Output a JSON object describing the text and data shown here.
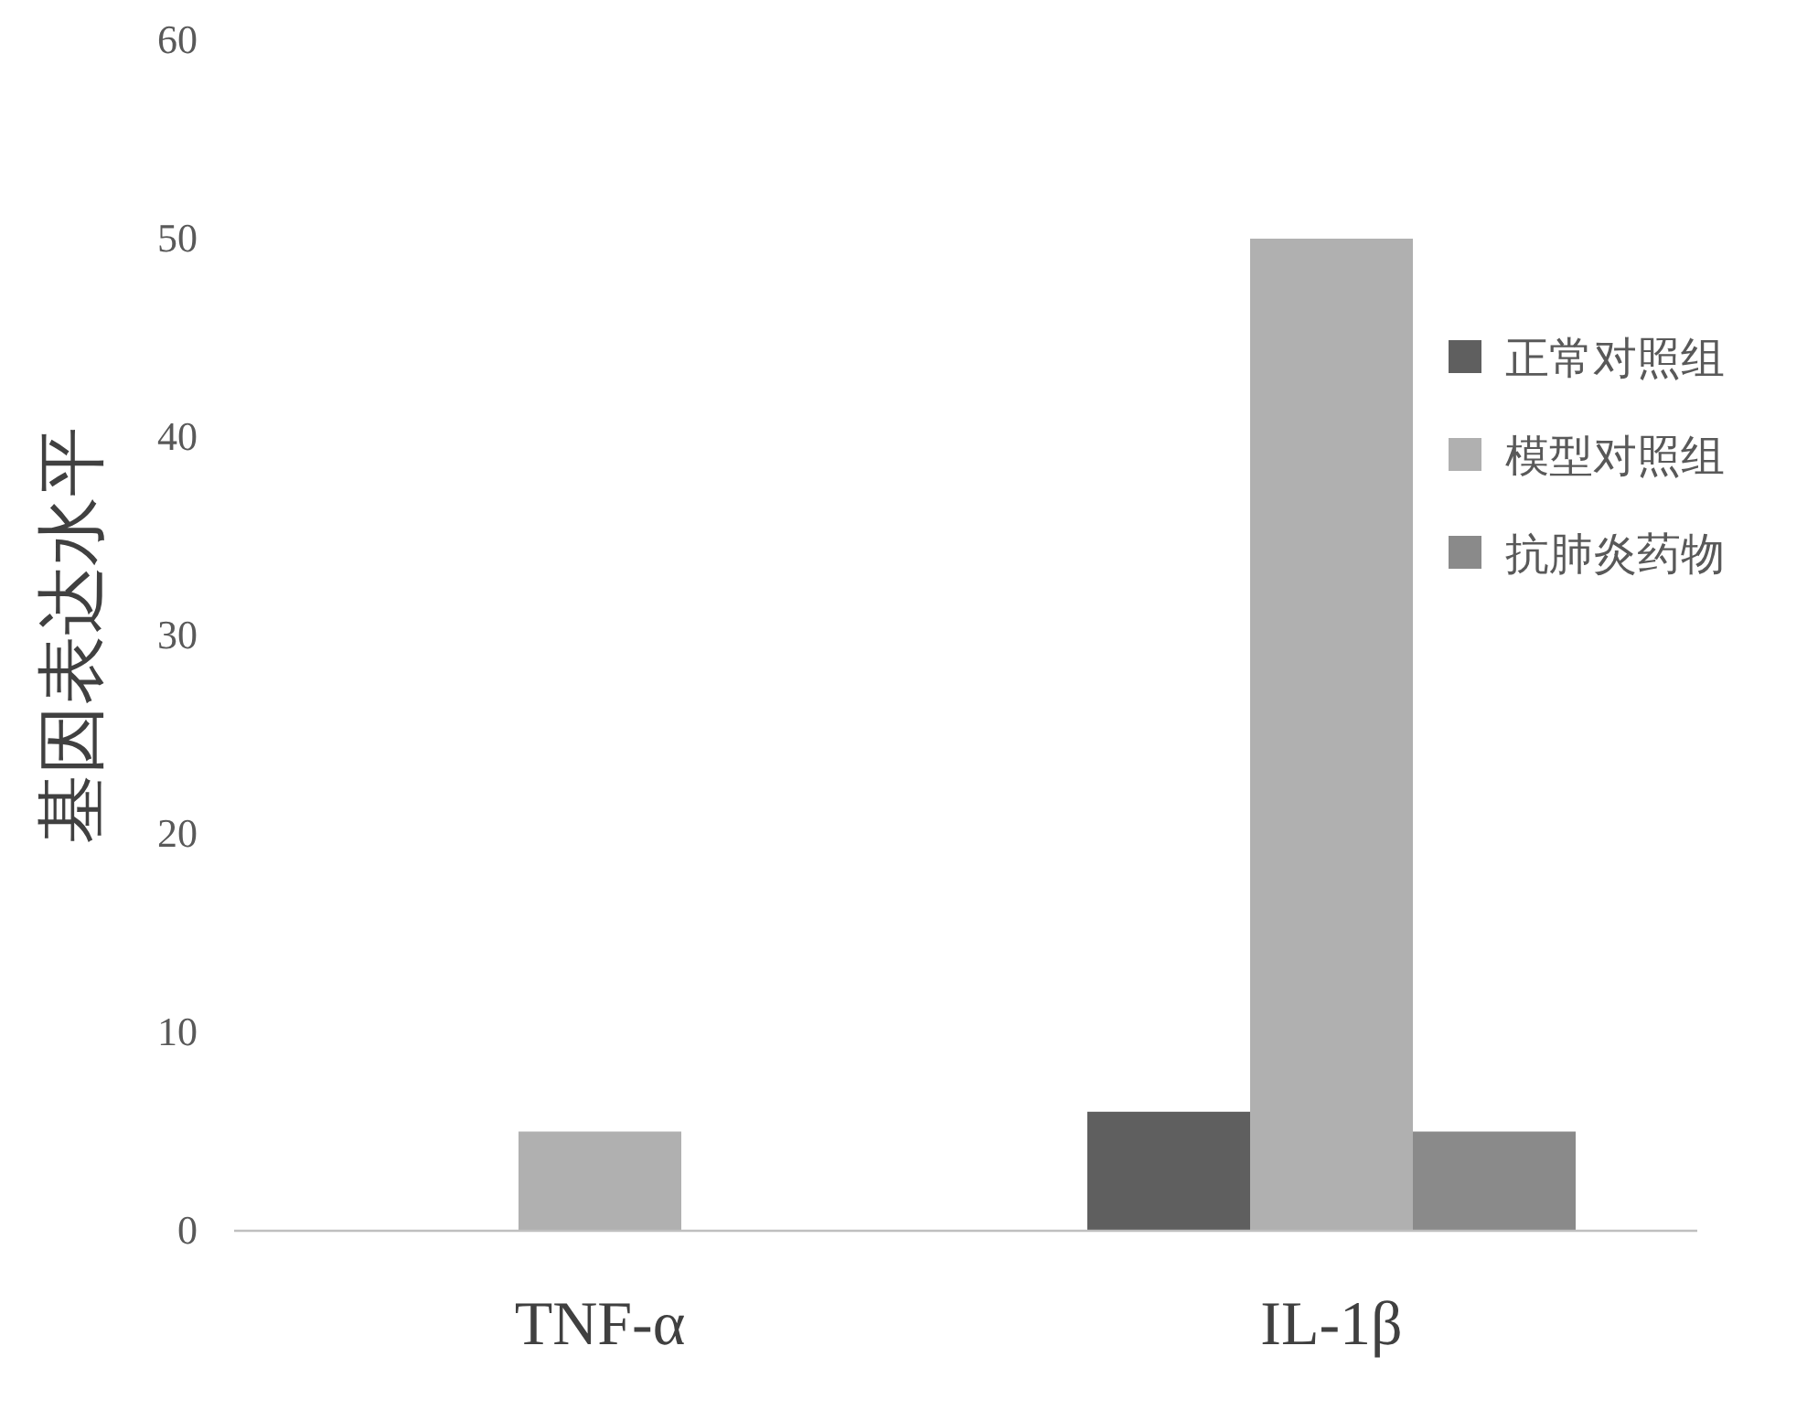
{
  "chart_data": {
    "type": "bar",
    "ylabel": "基因表达水平",
    "categories": [
      "TNF-α",
      "IL-1β"
    ],
    "series": [
      {
        "name": "正常对照组",
        "color": "#5f5f5f",
        "values": [
          0,
          6
        ]
      },
      {
        "name": "模型对照组",
        "color": "#b0b0b0",
        "values": [
          5,
          50
        ]
      },
      {
        "name": "抗肺炎药物",
        "color": "#8a8a8a",
        "values": [
          0,
          5
        ]
      }
    ],
    "ylim": [
      0,
      60
    ],
    "yticks": [
      0,
      10,
      20,
      30,
      40,
      50,
      60
    ],
    "grid": false,
    "legend": "right"
  }
}
